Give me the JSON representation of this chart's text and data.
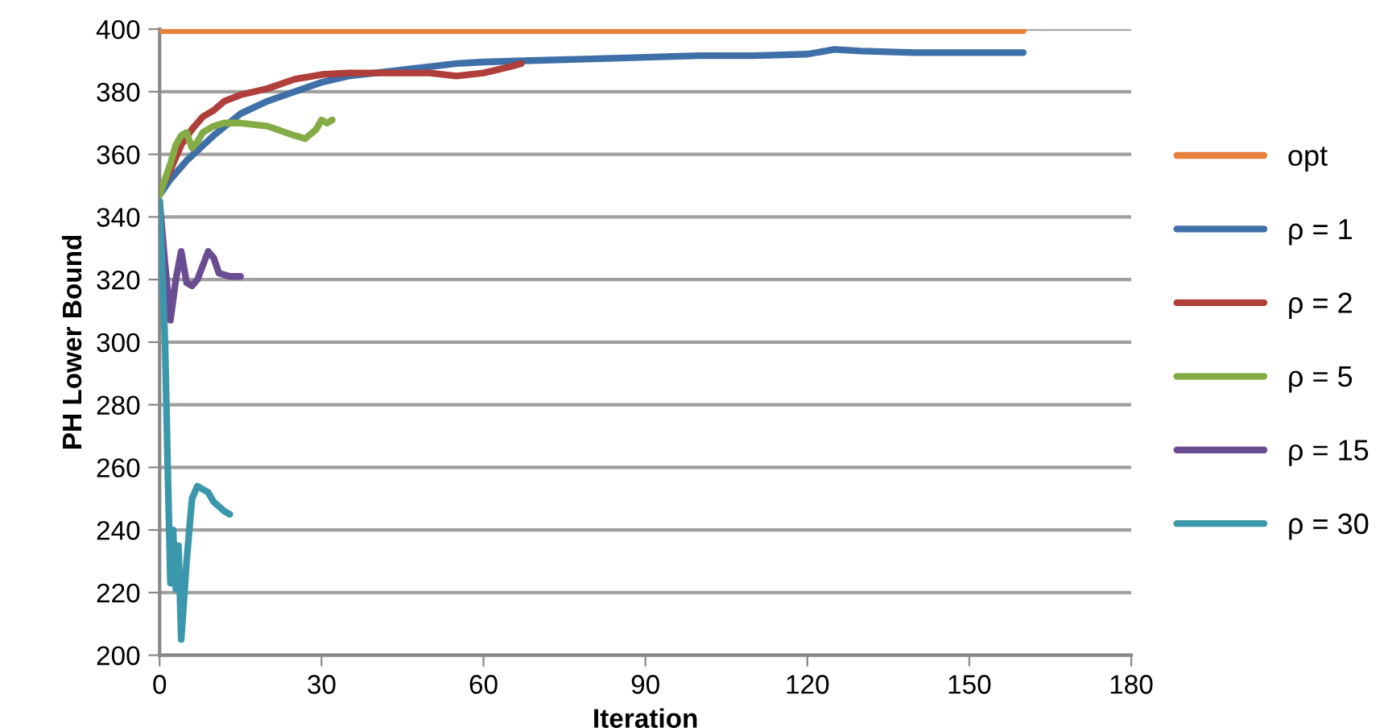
{
  "chart_data": {
    "type": "line",
    "xlabel": "Iteration",
    "ylabel": "PH Lower Bound",
    "xlim": [
      0,
      180
    ],
    "ylim": [
      200,
      400
    ],
    "xticks": [
      0,
      30,
      60,
      90,
      120,
      150,
      180
    ],
    "yticks": [
      200,
      220,
      240,
      260,
      280,
      300,
      320,
      340,
      360,
      380,
      400
    ],
    "grid": "y",
    "legend": "right",
    "marker": "none",
    "line_style": "solid",
    "series": [
      {
        "name": "opt",
        "color": "#e8803c",
        "x": [
          0,
          160
        ],
        "values": [
          399.5,
          399.5
        ]
      },
      {
        "name": "ρ = 1",
        "color": "#3f6fa8",
        "x": [
          0,
          2,
          5,
          10,
          15,
          20,
          25,
          30,
          35,
          40,
          45,
          50,
          55,
          60,
          70,
          80,
          90,
          100,
          110,
          120,
          125,
          130,
          140,
          150,
          160
        ],
        "values": [
          347,
          352,
          358,
          366,
          373,
          377,
          380,
          383,
          385,
          386,
          387,
          388,
          389,
          389.5,
          390,
          390.5,
          391,
          391.5,
          391.5,
          392,
          393.5,
          393,
          392.5,
          392.5,
          392.5
        ]
      },
      {
        "name": "ρ = 2",
        "color": "#b03e3b",
        "x": [
          0,
          2,
          4,
          6,
          8,
          10,
          12,
          15,
          20,
          25,
          30,
          35,
          40,
          50,
          55,
          60,
          65,
          67
        ],
        "values": [
          348,
          355,
          363,
          368,
          372,
          374,
          377,
          379,
          381,
          384,
          385.5,
          386,
          386,
          386,
          385,
          386,
          388,
          389
        ]
      },
      {
        "name": "ρ = 5",
        "color": "#84ac45",
        "x": [
          0,
          1,
          2,
          3,
          4,
          5,
          6,
          7,
          8,
          10,
          12,
          15,
          20,
          25,
          27,
          29,
          30,
          31,
          32
        ],
        "values": [
          347,
          352,
          357,
          363,
          366,
          367,
          362,
          364,
          367,
          369,
          370,
          370,
          369,
          366,
          365,
          368,
          371,
          370,
          371
        ]
      },
      {
        "name": "ρ = 15",
        "color": "#6a4c93",
        "x": [
          0,
          1,
          2,
          3,
          4,
          5,
          6,
          7,
          9,
          10,
          11,
          13,
          15
        ],
        "values": [
          345,
          325,
          307,
          320,
          329,
          319,
          318,
          320,
          329,
          327,
          322,
          321,
          321
        ]
      },
      {
        "name": "ρ = 30",
        "color": "#3b97ac",
        "x": [
          0,
          1,
          1.5,
          2,
          2.5,
          3,
          3.5,
          4,
          5,
          6,
          7,
          9,
          10,
          12,
          13
        ],
        "values": [
          345,
          300,
          260,
          223,
          240,
          221,
          235,
          205,
          230,
          250,
          254,
          252,
          249,
          246,
          245
        ]
      }
    ]
  }
}
